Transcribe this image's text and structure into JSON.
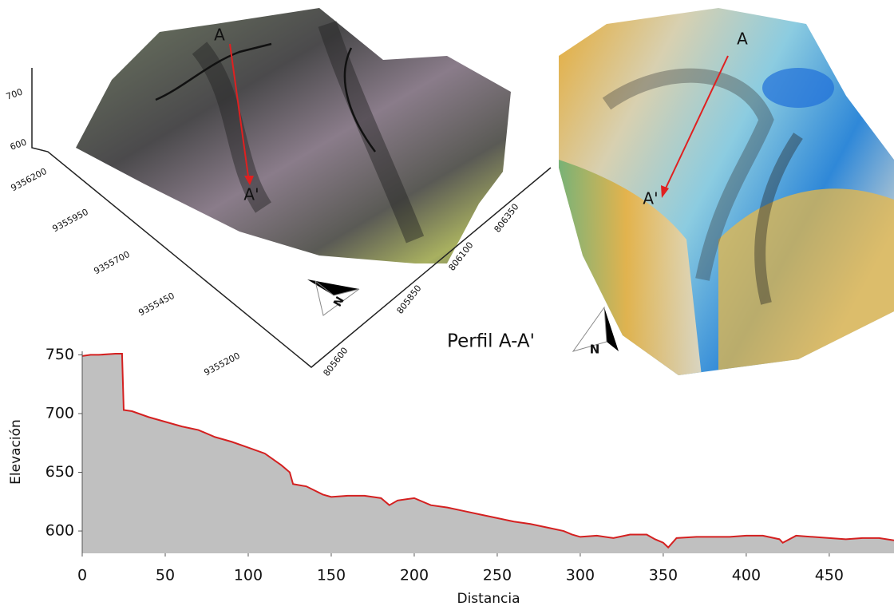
{
  "chart_data": {
    "type": "area",
    "title": "Perfil A-A'",
    "x_label": "Distancia",
    "y_label": "Elevación",
    "x": [
      0,
      5,
      10,
      20,
      24,
      25,
      30,
      40,
      50,
      60,
      70,
      80,
      90,
      100,
      110,
      120,
      125,
      127,
      135,
      145,
      150,
      160,
      170,
      180,
      185,
      190,
      200,
      210,
      220,
      230,
      240,
      250,
      260,
      270,
      280,
      290,
      295,
      300,
      310,
      320,
      330,
      340,
      345,
      350,
      353,
      358,
      370,
      380,
      390,
      400,
      410,
      420,
      422,
      430,
      440,
      450,
      460,
      470,
      480,
      489
    ],
    "series": [
      {
        "name": "Perfil A-A'",
        "color": "#d42020",
        "fill": "#c0c0c0",
        "values": [
          749,
          750,
          750,
          751,
          751,
          703,
          702,
          697,
          693,
          689,
          686,
          680,
          676,
          671,
          666,
          656,
          650,
          640,
          638,
          631,
          629,
          630,
          630,
          628,
          622,
          626,
          628,
          622,
          620,
          617,
          614,
          611,
          608,
          606,
          603,
          600,
          597,
          595,
          596,
          594,
          597,
          597,
          593,
          590,
          586,
          594,
          595,
          595,
          595,
          596,
          596,
          593,
          590,
          596,
          595,
          594,
          593,
          594,
          594,
          592
        ]
      }
    ],
    "xlim": [
      0,
      489
    ],
    "ylim": [
      581,
      753
    ],
    "xticks": [
      0,
      50,
      100,
      150,
      200,
      250,
      300,
      350,
      400,
      450
    ],
    "yticks": [
      600,
      650,
      700,
      750
    ],
    "grid": false
  },
  "maps": [
    {
      "start": "A",
      "end": "A'",
      "north": "N",
      "z_ticks": [
        700,
        600
      ],
      "y_ticks": [
        9356200,
        9355950,
        9355700,
        9355450,
        9355200
      ],
      "x_ticks": [
        805600,
        805850,
        806100,
        806350
      ]
    },
    {
      "start": "A",
      "end": "A'",
      "north": "N"
    }
  ]
}
